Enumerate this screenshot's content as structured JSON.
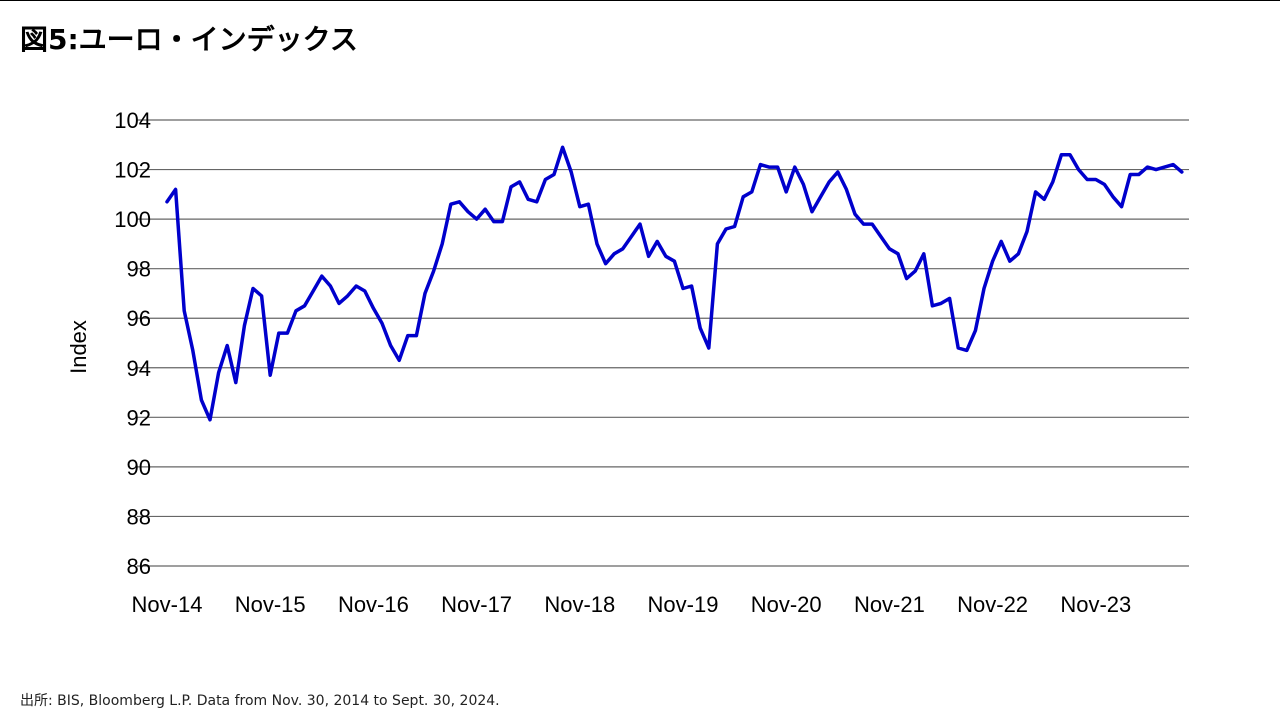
{
  "title": "図5:ユーロ・インデックス",
  "source": "出所: BIS, Bloomberg L.P. Data from Nov. 30, 2014 to Sept. 30, 2024.",
  "chart_data": {
    "type": "line",
    "title": "図5:ユーロ・インデックス",
    "xlabel": "",
    "ylabel": "Index",
    "ylim": [
      86,
      104
    ],
    "yticks": [
      86,
      88,
      90,
      92,
      94,
      96,
      98,
      100,
      102,
      104
    ],
    "xticks": [
      "Nov-14",
      "Nov-15",
      "Nov-16",
      "Nov-17",
      "Nov-18",
      "Nov-19",
      "Nov-20",
      "Nov-21",
      "Nov-22",
      "Nov-23"
    ],
    "x_start": "2014-11",
    "x_end": "2024-09",
    "grid": true,
    "line_color": "#0000cc",
    "series": [
      {
        "values": [
          100.7,
          101.2,
          96.3,
          94.7,
          92.7,
          91.9,
          93.8,
          94.9,
          93.4,
          95.7,
          97.2,
          96.9,
          93.7,
          95.4,
          95.4,
          96.3,
          96.5,
          97.1,
          97.7,
          97.3,
          96.6,
          96.9,
          97.3,
          97.1,
          96.4,
          95.8,
          94.9,
          94.3,
          95.3,
          95.3,
          97.0,
          97.9,
          99.0,
          100.6,
          100.7,
          100.3,
          100.0,
          100.4,
          99.9,
          99.9,
          101.3,
          101.5,
          100.8,
          100.7,
          101.6,
          101.8,
          102.9,
          101.9,
          100.5,
          100.6,
          99.0,
          98.2,
          98.6,
          98.8,
          99.3,
          99.8,
          98.5,
          99.1,
          98.5,
          98.3,
          97.2,
          97.3,
          95.6,
          94.8,
          99.0,
          99.6,
          99.7,
          100.9,
          101.1,
          102.2,
          102.1,
          102.1,
          101.1,
          102.1,
          101.4,
          100.3,
          100.9,
          101.5,
          101.9,
          101.2,
          100.2,
          99.8,
          99.8,
          99.3,
          98.8,
          98.6,
          97.6,
          97.9,
          98.6,
          96.5,
          96.6,
          96.8,
          94.8,
          94.7,
          95.5,
          97.2,
          98.3,
          99.1,
          98.3,
          98.6,
          99.5,
          101.1,
          100.8,
          101.5,
          102.6,
          102.6,
          102.0,
          101.6,
          101.6,
          101.4,
          100.9,
          100.5,
          101.8,
          101.8,
          102.1,
          102.0,
          102.1,
          102.2,
          101.9
        ]
      }
    ]
  }
}
